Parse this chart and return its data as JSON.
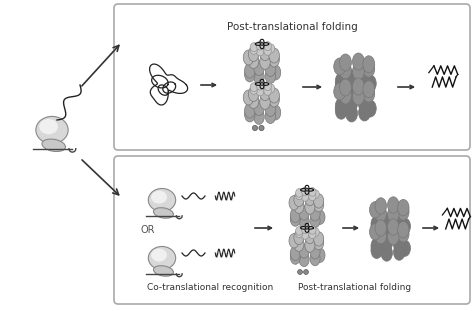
{
  "bg_color": "#ffffff",
  "label_top": "Post-translational folding",
  "label_bottom_left": "Co-translational recognition",
  "label_bottom_right": "Post-translational folding",
  "or_text": "OR",
  "fig_width": 4.74,
  "fig_height": 3.11,
  "dpi": 100
}
